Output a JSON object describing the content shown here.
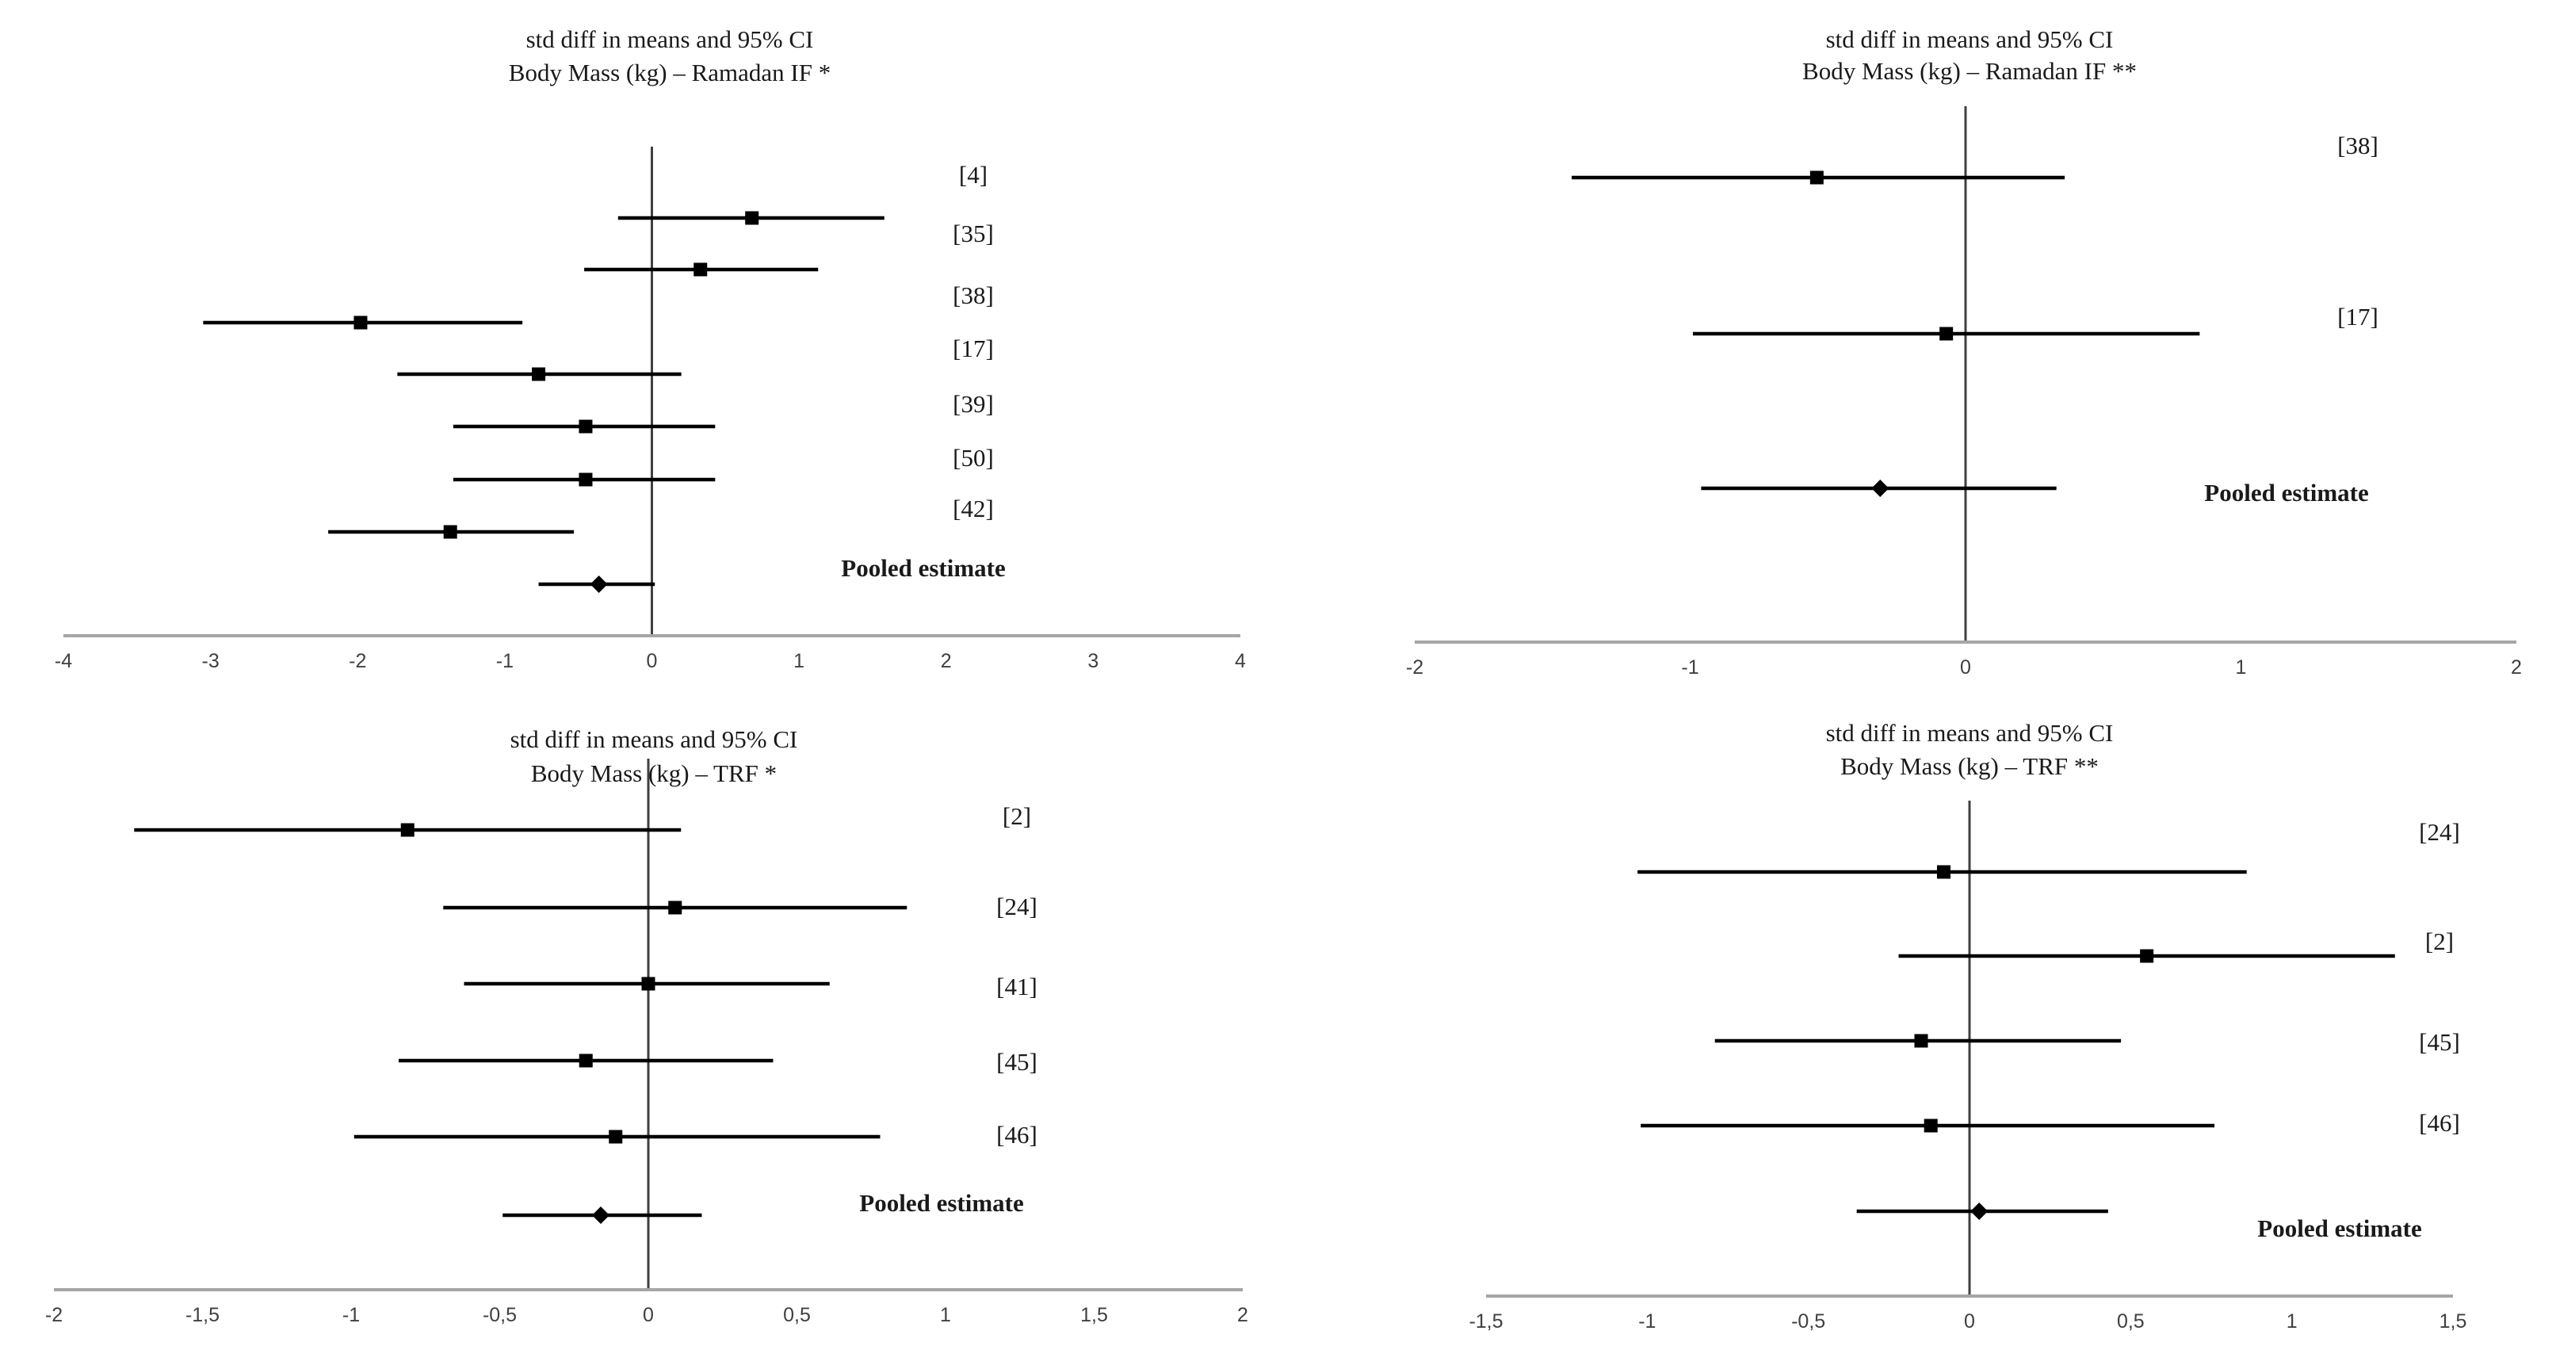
{
  "chart_data": [
    {
      "type": "forest",
      "title_line1": "std diff in means and 95% CI",
      "title_line2": "Body Mass (kg) – Ramadan IF  *",
      "xlim": [
        -4,
        4
      ],
      "ticks": [
        "-4",
        "-3",
        "-2",
        "-1",
        "0",
        "1",
        "2",
        "3",
        "4"
      ],
      "studies": [
        {
          "label": "[4]",
          "estimate": 0.68,
          "lower": -0.23,
          "upper": 1.58
        },
        {
          "label": "[35]",
          "estimate": 0.33,
          "lower": -0.46,
          "upper": 1.13
        },
        {
          "label": "[38]",
          "estimate": -1.98,
          "lower": -3.05,
          "upper": -0.88
        },
        {
          "label": "[17]",
          "estimate": -0.77,
          "lower": -1.73,
          "upper": 0.2
        },
        {
          "label": "[39]",
          "estimate": -0.45,
          "lower": -1.35,
          "upper": 0.43
        },
        {
          "label": "[50]",
          "estimate": -0.45,
          "lower": -1.35,
          "upper": 0.43
        },
        {
          "label": "[42]",
          "estimate": -1.37,
          "lower": -2.2,
          "upper": -0.53
        }
      ],
      "pooled": {
        "label": "Pooled estimate",
        "estimate": -0.36,
        "lower": -0.77,
        "upper": 0.02
      }
    },
    {
      "type": "forest",
      "title_line1": "std diff in means and 95% CI",
      "title_line2": "Body Mass (kg) – Ramadan IF  **",
      "xlim": [
        -2,
        2
      ],
      "ticks": [
        "-2",
        "-1",
        "0",
        "1",
        "2"
      ],
      "studies": [
        {
          "label": "[38]",
          "estimate": -0.54,
          "lower": -1.43,
          "upper": 0.36
        },
        {
          "label": "[17]",
          "estimate": -0.07,
          "lower": -0.99,
          "upper": 0.85
        }
      ],
      "pooled": {
        "label": "Pooled estimate",
        "estimate": -0.31,
        "lower": -0.96,
        "upper": 0.33
      }
    },
    {
      "type": "forest",
      "title_line1": "std diff in means and 95% CI",
      "title_line2": "Body Mass (kg) – TRF  *",
      "xlim": [
        -2,
        2
      ],
      "ticks": [
        "-2",
        "-1,5",
        "-1",
        "-0,5",
        "0",
        "0,5",
        "1",
        "1,5",
        "2"
      ],
      "studies": [
        {
          "label": "[2]",
          "estimate": -0.81,
          "lower": -1.73,
          "upper": 0.11
        },
        {
          "label": "[24]",
          "estimate": 0.09,
          "lower": -0.69,
          "upper": 0.87
        },
        {
          "label": "[41]",
          "estimate": 0.0,
          "lower": -0.62,
          "upper": 0.61
        },
        {
          "label": "[45]",
          "estimate": -0.21,
          "lower": -0.84,
          "upper": 0.42
        },
        {
          "label": "[46]",
          "estimate": -0.11,
          "lower": -0.99,
          "upper": 0.78
        }
      ],
      "pooled": {
        "label": "Pooled estimate",
        "estimate": -0.16,
        "lower": -0.49,
        "upper": 0.18
      }
    },
    {
      "type": "forest",
      "title_line1": "std diff in means and 95% CI",
      "title_line2": "Body Mass (kg) – TRF  **",
      "xlim": [
        -1.5,
        1.5
      ],
      "ticks": [
        "-1,5",
        "-1",
        "-0,5",
        "0",
        "0,5",
        "1",
        "1,5"
      ],
      "studies": [
        {
          "label": "[24]",
          "estimate": -0.08,
          "lower": -1.03,
          "upper": 0.86
        },
        {
          "label": "[2]",
          "estimate": 0.55,
          "lower": -0.22,
          "upper": 1.32
        },
        {
          "label": "[45]",
          "estimate": -0.15,
          "lower": -0.79,
          "upper": 0.47
        },
        {
          "label": "[46]",
          "estimate": -0.12,
          "lower": -1.02,
          "upper": 0.76
        }
      ],
      "pooled": {
        "label": "Pooled estimate",
        "estimate": 0.03,
        "lower": -0.35,
        "upper": 0.43
      }
    }
  ]
}
